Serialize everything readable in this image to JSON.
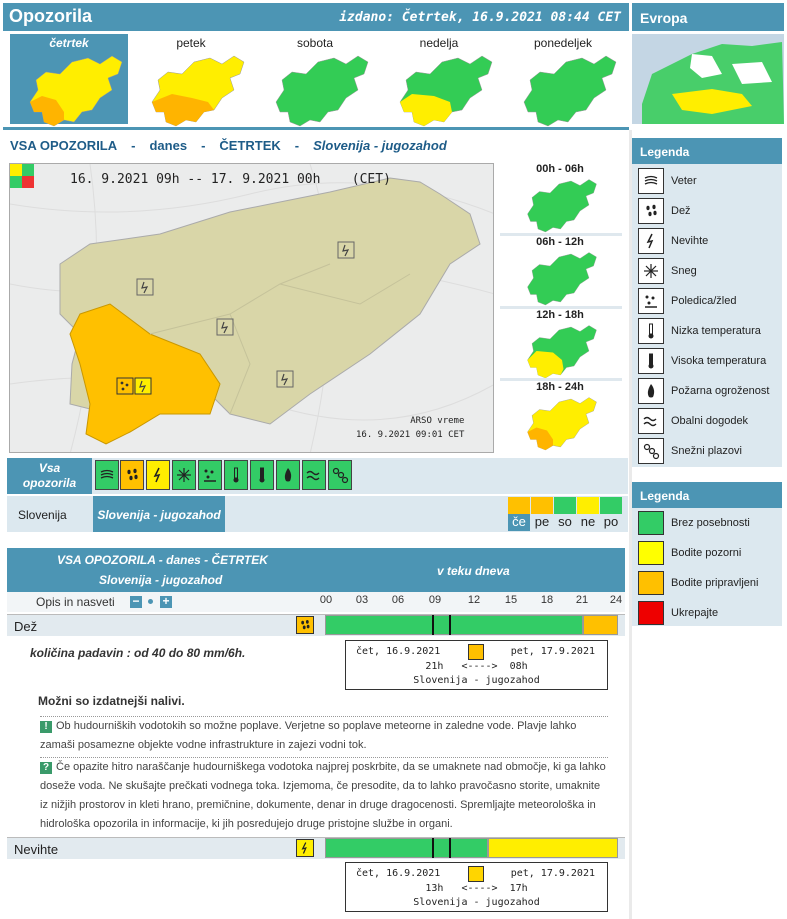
{
  "header": {
    "title": "Opozorila",
    "issued": "izdano: Četrtek, 16.9.2021 08:44 CET",
    "europe": "Evropa"
  },
  "days": [
    {
      "label": "četrtek",
      "active": true
    },
    {
      "label": "petek",
      "active": false
    },
    {
      "label": "sobota",
      "active": false
    },
    {
      "label": "nedelja",
      "active": false
    },
    {
      "label": "ponedeljek",
      "active": false
    }
  ],
  "main_title": {
    "a": "VSA OPOZORILA",
    "dash": "-",
    "b": "danes",
    "c": "ČETRTEK",
    "d": "Slovenija - jugozahod"
  },
  "map": {
    "date_from": "16. 9.2021  09h",
    "arrow": "--",
    "date_to": "17. 9.2021  00h",
    "tz": "(CET)",
    "credit1": "ARSO vreme",
    "credit2": "16. 9.2021 09:01 CET"
  },
  "slots": [
    "00h - 06h",
    "06h - 12h",
    "12h - 18h",
    "18h - 24h"
  ],
  "filter": {
    "all_label_1": "Vsa",
    "all_label_2": "opozorila",
    "icons": [
      "wind-icon",
      "rain-icon",
      "thunderstorm-icon",
      "snow-icon",
      "ice-icon",
      "low-temp-icon",
      "high-temp-icon",
      "fire-icon",
      "coastal-icon",
      "avalanche-icon"
    ]
  },
  "region": {
    "all": "Slovenija",
    "selected": "Slovenija - jugozahod",
    "mini_days": [
      "če",
      "pe",
      "so",
      "ne",
      "po"
    ],
    "mini_colors": [
      "#ffc000",
      "#ffc000",
      "#33cc66",
      "#ffee00",
      "#33cc66"
    ]
  },
  "table": {
    "title_1": "VSA OPOZORILA - danes - ČETRTEK",
    "title_2": "Slovenija - jugozahod",
    "right": "v teku dneva",
    "opis": "Opis in nasveti",
    "minus": "−",
    "plus": "+",
    "hours": [
      "00",
      "03",
      "06",
      "09",
      "12",
      "15",
      "18",
      "21",
      "24"
    ]
  },
  "rain": {
    "label": "Dež",
    "detail": "količina padavin : od 40 do 80 mm/6h.",
    "popup_left": "čet, 16.9.2021",
    "popup_right": "pet, 17.9.2021",
    "popup_time_from": "21h",
    "popup_arrow": "<---->",
    "popup_time_to": "08h",
    "popup_region": "Slovenija - jugozahod",
    "possible": "Možni so izdatnejši nalivi.",
    "warn": "Ob hudourniških vodotokih so možne poplave. Verjetne so poplave meteorne in zaledne vode. Plavje lahko zamaši posamezne objekte vodne infrastrukture in zajezi vodni tok.",
    "advice": "Če opazite hitro naraščanje hudourniškega vodotoka najprej poskrbite, da se umaknete nad območje, ki ga lahko doseže voda. Ne skušajte prečkati vodnega toka. Izjemoma, če presodite, da to lahko pravočasno storite, umaknite iz nižjih prostorov in kleti hrano, premičnine, dokumente, denar in druge dragocenosti. Spremljajte meteorološka in hidrološka opozorila in informacije, ki jih posredujejo druge pristojne službe in organi.",
    "warn_icon": "!",
    "advice_icon": "?"
  },
  "storm": {
    "label": "Nevihte",
    "popup_left": "čet, 16.9.2021",
    "popup_right": "pet, 17.9.2021",
    "popup_time_from": "13h",
    "popup_arrow": "<---->",
    "popup_time_to": "17h",
    "popup_region": "Slovenija - jugozahod"
  },
  "legend1": {
    "title": "Legenda",
    "items": [
      "Veter",
      "Dež",
      "Nevihte",
      "Sneg",
      "Poledica/žled",
      "Nizka temperatura",
      "Visoka temperatura",
      "Požarna ogroženost",
      "Obalni dogodek",
      "Snežni plazovi"
    ]
  },
  "legend2": {
    "title": "Legenda",
    "items": [
      {
        "label": "Brez posebnosti",
        "color": "#33cc66"
      },
      {
        "label": "Bodite pozorni",
        "color": "#ffff00"
      },
      {
        "label": "Bodite pripravljeni",
        "color": "#ffc000"
      },
      {
        "label": "Ukrepajte",
        "color": "#ee0000"
      }
    ]
  },
  "colors": {
    "accent": "#4c95b4",
    "green": "#33cc66",
    "yellow": "#ffee00",
    "orange": "#ffc000",
    "olive": "#d8d5a8"
  }
}
